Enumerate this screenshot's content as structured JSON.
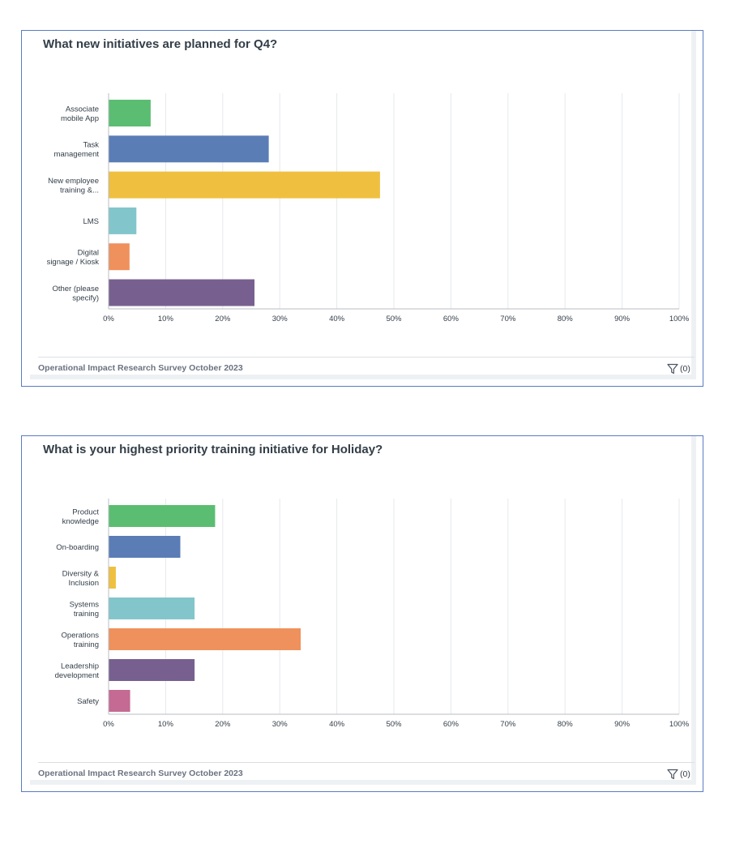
{
  "colors": {
    "green": "#5bbd72",
    "blue": "#5a7db6",
    "yellow": "#efc040",
    "teal": "#82c6cb",
    "orange": "#ef915c",
    "purple": "#77608f",
    "pink": "#c46a93",
    "grid": "#e6e8eb",
    "axis": "#b9bdc3",
    "label": "#333e48",
    "border": "#5b7bc4"
  },
  "cards": [
    {
      "title": "What new initiatives are planned for Q4?",
      "footer": "Operational Impact Research Survey October 2023",
      "filter_icon": "funnel-icon",
      "filter_count": "(0)"
    },
    {
      "title": "What is your highest priority training initiative for Holiday?",
      "footer": "Operational Impact Research Survey October 2023",
      "filter_icon": "funnel-icon",
      "filter_count": "(0)"
    }
  ],
  "chart_data": [
    {
      "type": "bar",
      "orientation": "horizontal",
      "title": "What new initiatives are planned for Q4?",
      "categories": [
        [
          "Associate",
          "mobile App"
        ],
        [
          "Task",
          "management"
        ],
        [
          "New employee",
          "training &..."
        ],
        [
          "LMS"
        ],
        [
          "Digital",
          "signage / Kiosk"
        ],
        [
          "Other (please",
          "specify)"
        ]
      ],
      "values": [
        7.3,
        28,
        47.5,
        4.8,
        3.6,
        25.5
      ],
      "unit": "%",
      "bar_colors": [
        "#5bbd72",
        "#5a7db6",
        "#efc040",
        "#82c6cb",
        "#ef915c",
        "#77608f"
      ],
      "xlim": [
        0,
        100
      ],
      "xticks": [
        "0%",
        "10%",
        "20%",
        "30%",
        "40%",
        "50%",
        "60%",
        "70%",
        "80%",
        "90%",
        "100%"
      ],
      "grid": true,
      "legend": "none"
    },
    {
      "type": "bar",
      "orientation": "horizontal",
      "title": "What is your highest priority training initiative for Holiday?",
      "categories": [
        [
          "Product",
          "knowledge"
        ],
        [
          "On-boarding"
        ],
        [
          "Diversity &",
          "Inclusion"
        ],
        [
          "Systems",
          "training"
        ],
        [
          "Operations",
          "training"
        ],
        [
          "Leadership",
          "development"
        ],
        [
          "Safety"
        ]
      ],
      "values": [
        18.6,
        12.5,
        1.2,
        15,
        33.6,
        15,
        3.7
      ],
      "unit": "%",
      "bar_colors": [
        "#5bbd72",
        "#5a7db6",
        "#efc040",
        "#82c6cb",
        "#ef915c",
        "#77608f",
        "#c46a93"
      ],
      "xlim": [
        0,
        100
      ],
      "xticks": [
        "0%",
        "10%",
        "20%",
        "30%",
        "40%",
        "50%",
        "60%",
        "70%",
        "80%",
        "90%",
        "100%"
      ],
      "grid": true,
      "legend": "none"
    }
  ]
}
